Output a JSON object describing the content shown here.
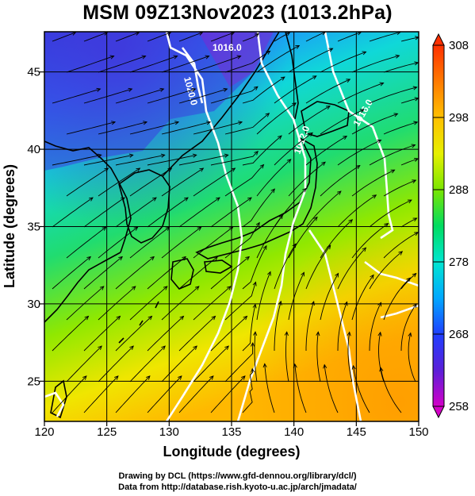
{
  "title": "MSM 09Z13Nov2023 (1013.2hPa)",
  "map": {
    "projection": "equirectangular",
    "lon_range": [
      120,
      150
    ],
    "lat_range": [
      22.4,
      47.6
    ],
    "xlabel": "Longitude (degrees)",
    "ylabel": "Latitude  (degrees)",
    "x_ticks": [
      "120",
      "125",
      "130",
      "135",
      "140",
      "145",
      "150"
    ],
    "y_ticks": [
      "25",
      "30",
      "35",
      "40",
      "45"
    ],
    "grid": true,
    "contour_labels": [
      "1016.0",
      "1020.0",
      "1016.0",
      "1012.0"
    ],
    "field": "temperature (K) shaded, isobars (hPa) white, surface wind streamlines"
  },
  "colorbar": {
    "ticks": [
      "308",
      "298",
      "288",
      "278",
      "268",
      "258"
    ],
    "min": 258,
    "max": 308,
    "colors": [
      "#d400c8",
      "#5a1fd8",
      "#1f3fff",
      "#00a8ff",
      "#00e6d0",
      "#00dc60",
      "#7ae600",
      "#e6f000",
      "#ffc000",
      "#ff7a00",
      "#ff3000"
    ]
  },
  "credits": {
    "line1": "Drawing by DCL (https://www.gfd-dennou.org/library/dcl/)",
    "line2": "Data from http://database.rish.kyoto-u.ac.jp/arch/jmadata/"
  }
}
